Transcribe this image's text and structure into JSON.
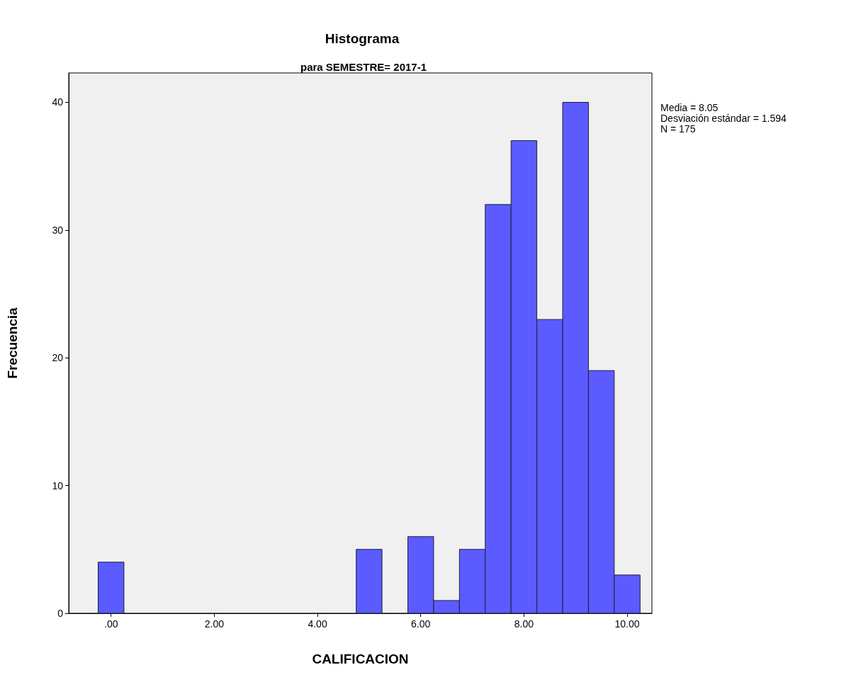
{
  "chart_data": {
    "type": "histogram",
    "title": "Histograma",
    "subtitle": "para SEMESTRE= 2017-1",
    "xlabel": "CALIFICACION",
    "ylabel": "Frecuencia",
    "bins": [
      -0.25,
      0.25,
      0.75,
      1.25,
      1.75,
      2.25,
      2.75,
      3.25,
      3.75,
      4.25,
      4.75,
      5.25,
      5.75,
      6.25,
      6.75,
      7.25,
      7.75,
      8.25,
      8.75,
      9.25,
      9.75,
      10.25
    ],
    "values": [
      4,
      0,
      0,
      0,
      0,
      0,
      0,
      0,
      0,
      0,
      5,
      0,
      6,
      1,
      5,
      32,
      37,
      23,
      40,
      19,
      3
    ],
    "color": "#5b5bff",
    "xlim": [
      -0.82,
      10.48
    ],
    "xticks": [
      {
        "value": 0,
        "label": ".00"
      },
      {
        "value": 2,
        "label": "2.00"
      },
      {
        "value": 4,
        "label": "4.00"
      },
      {
        "value": 6,
        "label": "6.00"
      },
      {
        "value": 8,
        "label": "8.00"
      },
      {
        "value": 10,
        "label": "10.00"
      }
    ],
    "ylim": [
      0,
      42.3
    ],
    "yticks": [
      0,
      10,
      20,
      30,
      40
    ],
    "annotations": [
      "Media = 8.05",
      "Desviación estándar = 1.594",
      "N = 175"
    ],
    "grid": false
  }
}
